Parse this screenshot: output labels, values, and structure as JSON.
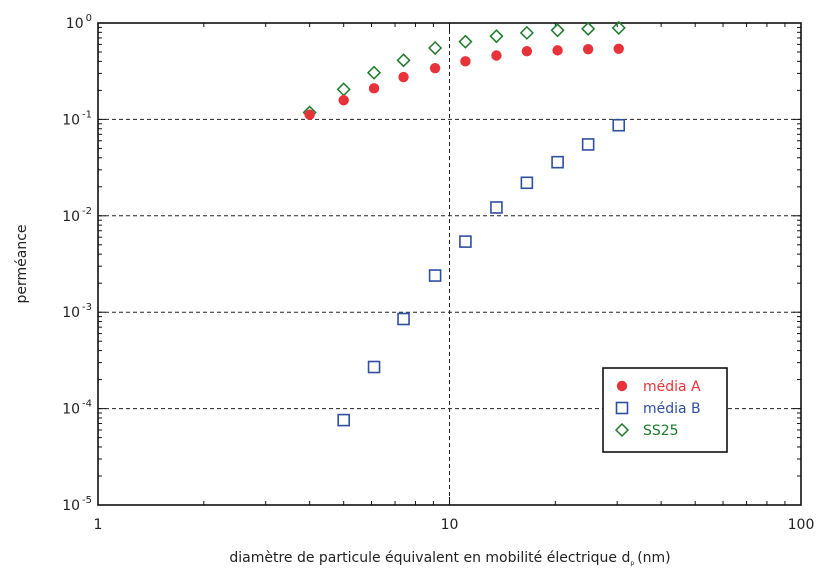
{
  "chart_data": {
    "type": "scatter",
    "title": "",
    "xlabel": "diamètre de particule équivalent en mobilité électrique",
    "xlabel_symbol": "d",
    "xlabel_subscript": "p",
    "xlabel_unit": "(nm)",
    "ylabel": "perméance",
    "x_scale": "log",
    "y_scale": "log",
    "xlim": [
      1,
      100
    ],
    "ylim": [
      1e-05,
      1
    ],
    "x_ticks": [
      {
        "value": 1,
        "label": "1"
      },
      {
        "value": 10,
        "label": "10"
      },
      {
        "value": 100,
        "label": "100"
      }
    ],
    "y_ticks": [
      {
        "value": 1,
        "base": "10",
        "exp": "0"
      },
      {
        "value": 0.1,
        "base": "10",
        "exp": "-1"
      },
      {
        "value": 0.01,
        "base": "10",
        "exp": "-2"
      },
      {
        "value": 0.001,
        "base": "10",
        "exp": "-3"
      },
      {
        "value": 0.0001,
        "base": "10",
        "exp": "-4"
      },
      {
        "value": 1e-05,
        "base": "10",
        "exp": "-5"
      }
    ],
    "grid": "dashed lines at decades",
    "legend_position": "lower-right",
    "series": [
      {
        "name": "média A",
        "marker": "filled-circle",
        "color": "#e8323a",
        "points": [
          [
            4.0,
            0.112
          ],
          [
            5.0,
            0.158
          ],
          [
            6.1,
            0.21
          ],
          [
            7.4,
            0.275
          ],
          [
            9.1,
            0.34
          ],
          [
            11.1,
            0.4
          ],
          [
            13.6,
            0.46
          ],
          [
            16.6,
            0.51
          ],
          [
            20.3,
            0.52
          ],
          [
            24.8,
            0.535
          ],
          [
            30.3,
            0.54
          ]
        ]
      },
      {
        "name": "média B",
        "marker": "open-square",
        "color": "#2f4f9f",
        "points": [
          [
            5.0,
            7.6e-05
          ],
          [
            6.1,
            0.00027
          ],
          [
            7.4,
            0.00085
          ],
          [
            9.1,
            0.0024
          ],
          [
            11.1,
            0.0054
          ],
          [
            13.6,
            0.0122
          ],
          [
            16.6,
            0.022
          ],
          [
            20.3,
            0.036
          ],
          [
            24.8,
            0.055
          ],
          [
            30.3,
            0.087
          ]
        ]
      },
      {
        "name": "SS25",
        "marker": "open-diamond",
        "color": "#1d7a2c",
        "points": [
          [
            4.0,
            0.118
          ],
          [
            5.0,
            0.205
          ],
          [
            6.1,
            0.305
          ],
          [
            7.4,
            0.41
          ],
          [
            9.1,
            0.55
          ],
          [
            11.1,
            0.64
          ],
          [
            13.6,
            0.73
          ],
          [
            16.6,
            0.79
          ],
          [
            20.3,
            0.84
          ],
          [
            24.8,
            0.87
          ],
          [
            30.3,
            0.89
          ]
        ]
      }
    ]
  }
}
